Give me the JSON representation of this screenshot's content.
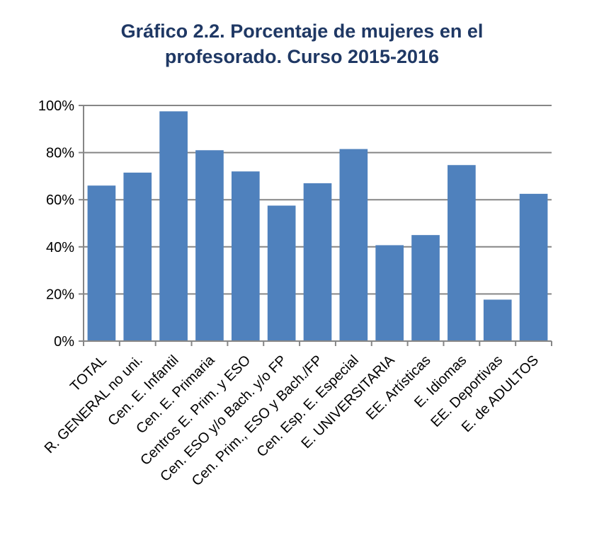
{
  "chart_data": {
    "type": "bar",
    "title_lines": [
      "Gráfico 2.2. Porcentaje de mujeres en el",
      "profesorado. Curso 2015-2016"
    ],
    "categories": [
      "TOTAL",
      "R. GENERAL no uni.",
      "Cen. E. Infantil",
      "Cen. E. Primaria",
      "Centros E. Prim. y ESO",
      "Cen. ESO y/o Bach. y/o FP",
      "Cen. Prim., ESO y Bach./FP",
      "Cen. Esp. E. Especial",
      "E. UNIVERSITARIA",
      "EE. Artísticas",
      "E. Idiomas",
      "EE. Deportivas",
      "E. de ADULTOS"
    ],
    "values": [
      66,
      71.5,
      97.5,
      81,
      72,
      57.5,
      67,
      81.5,
      40.7,
      45,
      74.7,
      17.6,
      62.5
    ],
    "ylim": [
      0,
      100
    ],
    "yticks": [
      "0%",
      "20%",
      "40%",
      "60%",
      "80%",
      "100%"
    ],
    "grid": true,
    "bar_color": "#4f81bd"
  }
}
